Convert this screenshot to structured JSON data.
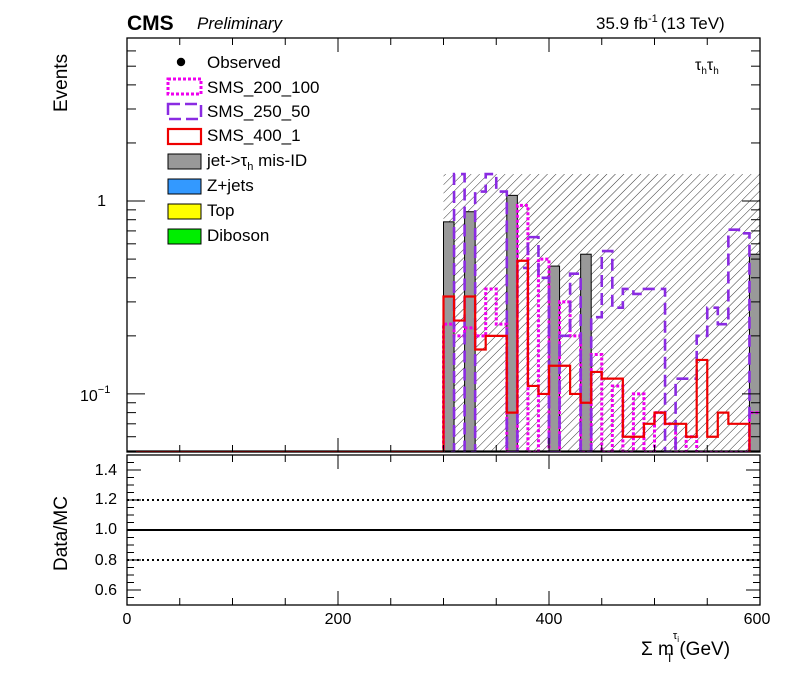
{
  "header": {
    "cms": "CMS",
    "preliminary": "Preliminary",
    "lumi_value": "35.9 fb",
    "lumi_exp": "-1",
    "lumi_energy": "(13 TeV)",
    "channel": "τ",
    "channel_sub": "h"
  },
  "top_panel": {
    "ylabel": "Events",
    "ytick_major": [
      "1",
      "10"
    ],
    "ytick_exp": "−1"
  },
  "ratio_panel": {
    "ylabel": "Data/MC",
    "yticks": [
      "1.4",
      "1.2",
      "1.0",
      "0.8",
      "0.6"
    ]
  },
  "xaxis": {
    "label_sigma": "Σ m",
    "label_sub": "T",
    "label_sup": "τ",
    "label_supsub": "i",
    "label_unit": "(GeV)",
    "ticks": [
      "0",
      "200",
      "400",
      "600"
    ]
  },
  "legend": [
    {
      "key": "observed",
      "label": "Observed"
    },
    {
      "key": "sms_200_100",
      "label": "SMS_200_100"
    },
    {
      "key": "sms_250_50",
      "label": "SMS_250_50"
    },
    {
      "key": "sms_400_1",
      "label": "SMS_400_1"
    },
    {
      "key": "jet_misid",
      "label_pre": "jet->τ",
      "label_sub": "h",
      "label_post": " mis-ID"
    },
    {
      "key": "zjets",
      "label": "Z+jets"
    },
    {
      "key": "top",
      "label": "Top"
    },
    {
      "key": "diboson",
      "label": "Diboson"
    }
  ],
  "chart_data": {
    "type": "bar",
    "scale": "log",
    "xlim": [
      0,
      600
    ],
    "ylim": [
      0.05,
      7
    ],
    "bin_width": 10,
    "colors": {
      "jet_misid": "#999999",
      "zjets": "#3399ff",
      "top": "#ffff00",
      "diboson": "#00ee00",
      "sms_200_100": "#ee00ee",
      "sms_250_50": "#8a2be2",
      "sms_400_1": "#ee0000",
      "uncertainty_hatch": "#000000"
    },
    "series": [
      {
        "name": "jet->τh mis-ID",
        "style": "filled",
        "bins": [
          [
            300,
            0.78
          ],
          [
            320,
            0.88
          ],
          [
            360,
            1.07
          ],
          [
            400,
            0.46
          ],
          [
            430,
            0.53
          ],
          [
            590,
            0.53
          ]
        ]
      },
      {
        "name": "SMS_200_100",
        "style": "dotted-step",
        "bins": [
          [
            300,
            0.23
          ],
          [
            310,
            0.2
          ],
          [
            320,
            0.22
          ],
          [
            330,
            0.2
          ],
          [
            340,
            0.35
          ],
          [
            350,
            0.23
          ],
          [
            370,
            0.95
          ],
          [
            390,
            0.5
          ],
          [
            410,
            0.3
          ],
          [
            420,
            0.2
          ],
          [
            440,
            0.16
          ],
          [
            460,
            0.11
          ],
          [
            480,
            0.1
          ],
          [
            500,
            0.08
          ],
          [
            510,
            0.07
          ],
          [
            530,
            0.06
          ],
          [
            570,
            0.05
          ],
          [
            590,
            0.08
          ]
        ]
      },
      {
        "name": "SMS_250_50",
        "style": "dashed-step",
        "bins": [
          [
            310,
            1.38
          ],
          [
            330,
            1.12
          ],
          [
            340,
            1.38
          ],
          [
            350,
            1.12
          ],
          [
            370,
            0.45
          ],
          [
            380,
            0.65
          ],
          [
            390,
            0.4
          ],
          [
            410,
            0.2
          ],
          [
            420,
            0.42
          ],
          [
            440,
            0.25
          ],
          [
            450,
            0.55
          ],
          [
            460,
            0.28
          ],
          [
            470,
            0.35
          ],
          [
            480,
            0.33
          ],
          [
            490,
            0.35
          ],
          [
            500,
            0.35
          ],
          [
            520,
            0.12
          ],
          [
            530,
            0.12
          ],
          [
            540,
            0.2
          ],
          [
            550,
            0.28
          ],
          [
            560,
            0.23
          ],
          [
            570,
            0.71
          ],
          [
            580,
            0.68
          ]
        ]
      },
      {
        "name": "SMS_400_1",
        "style": "solid-step",
        "bins": [
          [
            300,
            0.32
          ],
          [
            310,
            0.24
          ],
          [
            320,
            0.32
          ],
          [
            330,
            0.17
          ],
          [
            340,
            0.2
          ],
          [
            350,
            0.2
          ],
          [
            360,
            0.08
          ],
          [
            370,
            0.49
          ],
          [
            380,
            0.11
          ],
          [
            390,
            0.1
          ],
          [
            400,
            0.14
          ],
          [
            410,
            0.14
          ],
          [
            420,
            0.1
          ],
          [
            430,
            0.09
          ],
          [
            440,
            0.13
          ],
          [
            450,
            0.12
          ],
          [
            460,
            0.12
          ],
          [
            470,
            0.06
          ],
          [
            480,
            0.06
          ],
          [
            490,
            0.07
          ],
          [
            500,
            0.08
          ],
          [
            510,
            0.07
          ],
          [
            520,
            0.07
          ],
          [
            530,
            0.06
          ],
          [
            540,
            0.15
          ],
          [
            550,
            0.06
          ],
          [
            560,
            0.08
          ],
          [
            570,
            0.07
          ],
          [
            580,
            0.07
          ]
        ]
      }
    ],
    "uncertainty_band": {
      "x": [
        300,
        600
      ],
      "y_top": 1.38
    },
    "ratio": {
      "ylim": [
        0.5,
        1.5
      ],
      "lines": [
        1.2,
        1.0,
        0.8
      ]
    }
  }
}
